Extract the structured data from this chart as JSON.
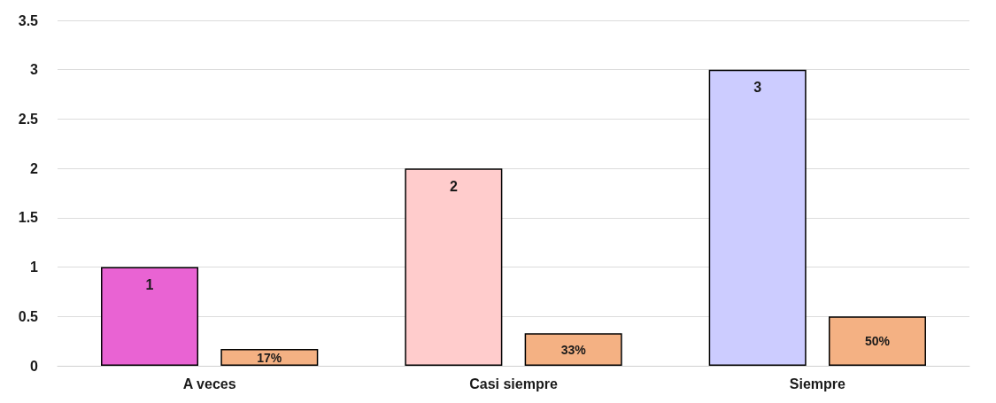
{
  "chart_data": {
    "type": "bar",
    "categories": [
      "A veces",
      "Casi siempre",
      "Siempre"
    ],
    "series": [
      {
        "colors": [
          "#e963d3",
          "#ffcccc",
          "#ccccff"
        ],
        "values": [
          1,
          2,
          3
        ],
        "value_labels": [
          "1",
          "2",
          "3"
        ]
      },
      {
        "color": "#f4b183",
        "values": [
          0.17,
          0.33,
          0.5
        ],
        "value_labels": [
          "17%",
          "33%",
          "50%"
        ]
      }
    ],
    "ylim": [
      0,
      3.5
    ],
    "yticks": [
      0,
      0.5,
      1,
      1.5,
      2,
      2.5,
      3,
      3.5
    ],
    "grid": "y"
  }
}
